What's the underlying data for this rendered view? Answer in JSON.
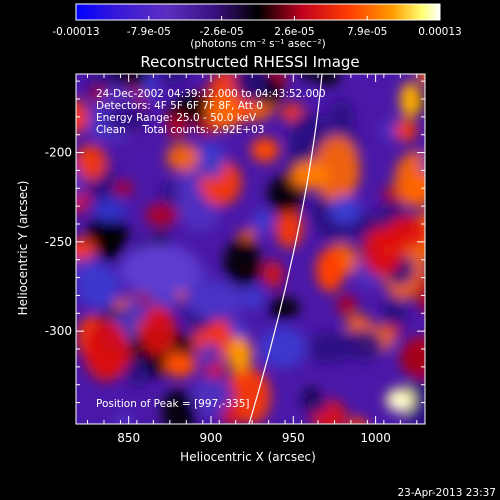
{
  "colorbar": {
    "tick_labels": [
      "-0.00013",
      "-7.9e-05",
      "-2.6e-05",
      "2.6e-05",
      "7.9e-05",
      "0.00013"
    ],
    "unit_label": "(photons cm⁻² s⁻¹ asec⁻²)",
    "colormap": [
      "#0000ff",
      "#5b2ea8",
      "#4b00b4",
      "#000000",
      "#c0001e",
      "#ff3800",
      "#ff9a00",
      "#ffff80",
      "#ffffff"
    ]
  },
  "title": "Reconstructed RHESSI Image",
  "info_lines": [
    "24-Dec-2002 04:39:12.000 to 04:43:52.000",
    "Detectors: 4F 5F 6F 7F 8F, Att 0",
    "Energy Range: 25.0 - 50.0 keV",
    "Clean     Total counts: 2.92E+03"
  ],
  "peak_label": "Position of Peak = [997,-335]",
  "xlabel": "Heliocentric X (arcsec)",
  "ylabel": "Heliocentric Y (arcsec)",
  "x_ticks": [
    "850",
    "900",
    "950",
    "1000"
  ],
  "y_ticks": [
    "-200",
    "-250",
    "-300"
  ],
  "x_tick_values": [
    850,
    900,
    950,
    1000
  ],
  "y_tick_values": [
    -200,
    -250,
    -300
  ],
  "xlim": [
    818,
    1030
  ],
  "ylim": [
    -352,
    -156
  ],
  "timestamp": "23-Apr-2013 23:37",
  "colors": {
    "background": "#000000",
    "foreground": "#ffffff",
    "limb": "#ffffff"
  }
}
